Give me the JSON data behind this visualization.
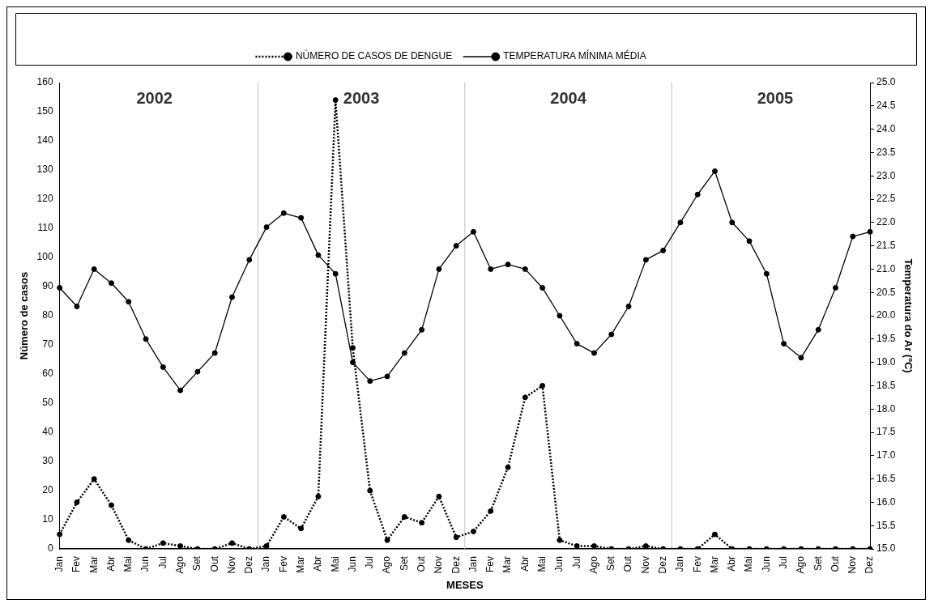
{
  "chart_data": {
    "type": "line",
    "xlabel": "MESES",
    "ylabel": "Número de casos",
    "y2label": "Temperatura do Ar (ºC)",
    "categories": [
      "Jan",
      "Fev",
      "Mar",
      "Abr",
      "Mai",
      "Jun",
      "Jul",
      "Ago",
      "Set",
      "Out",
      "Nov",
      "Dez",
      "Jan",
      "Fev",
      "Mar",
      "Abr",
      "Mai",
      "Jun",
      "Jul",
      "Ago",
      "Set",
      "Out",
      "Nov",
      "Dez",
      "Jan",
      "Fev",
      "Mar",
      "Abr",
      "Mai",
      "Jun",
      "Jul",
      "Ago",
      "Set",
      "Out",
      "Nov",
      "Dez",
      "Jan",
      "Fev",
      "Mar",
      "Abr",
      "Mai",
      "Jun",
      "Jul",
      "Ago",
      "Set",
      "Out",
      "Nov",
      "Dez"
    ],
    "series": [
      {
        "name": "NÚMERO DE CASOS DE DENGUE",
        "color": "#000000",
        "line_style": "dotted",
        "marker": "circle",
        "values": [
          5,
          16,
          24,
          15,
          3,
          0,
          2,
          1,
          0,
          0,
          2,
          0,
          1,
          11,
          7,
          18,
          154,
          69,
          20,
          3,
          11,
          9,
          18,
          4,
          6,
          13,
          28,
          52,
          56,
          3,
          1,
          1,
          0,
          0,
          1,
          0,
          0,
          0,
          5,
          0,
          0,
          0,
          0,
          0,
          0,
          0,
          0,
          0
        ]
      },
      {
        "name": "TEMPERATURA MÍNIMA MÉDIA",
        "color": "#000000",
        "line_style": "solid",
        "marker": "circle",
        "axis": "y2",
        "values": [
          20.6,
          20.2,
          21.0,
          20.7,
          20.3,
          19.5,
          18.9,
          18.4,
          18.8,
          19.2,
          20.4,
          21.2,
          21.9,
          22.2,
          22.1,
          21.3,
          20.9,
          19.0,
          18.6,
          18.7,
          19.2,
          19.7,
          21.0,
          21.5,
          21.8,
          21.0,
          21.1,
          21.0,
          20.6,
          20.0,
          19.4,
          19.2,
          19.6,
          20.2,
          21.2,
          21.4,
          22.0,
          22.6,
          23.1,
          22.0,
          21.6,
          20.9,
          19.4,
          19.1,
          19.7,
          20.6,
          21.7,
          21.8
        ]
      }
    ],
    "ylim": [
      0,
      160
    ],
    "yticks": [
      0,
      10,
      20,
      30,
      40,
      50,
      60,
      70,
      80,
      90,
      100,
      110,
      120,
      130,
      140,
      150,
      160
    ],
    "y2lim": [
      15,
      25
    ],
    "y2ticks": [
      {
        "value": 15,
        "label": "15.0"
      },
      {
        "value": 15.5,
        "label": "15.5"
      },
      {
        "value": 16,
        "label": "16.0"
      },
      {
        "value": 16.5,
        "label": "16.5"
      },
      {
        "value": 17,
        "label": "17.0"
      },
      {
        "value": 17.5,
        "label": "17.5"
      },
      {
        "value": 18,
        "label": "18.0"
      },
      {
        "value": 18.5,
        "label": "18.5"
      },
      {
        "value": 19,
        "label": "19.0"
      },
      {
        "value": 19.5,
        "label": "19.5"
      },
      {
        "value": 20,
        "label": "20.0"
      },
      {
        "value": 20.5,
        "label": "20.5"
      },
      {
        "value": 21,
        "label": "21.0"
      },
      {
        "value": 21.5,
        "label": "21.5"
      },
      {
        "value": 22,
        "label": "22.0"
      },
      {
        "value": 22.5,
        "label": "22.5"
      },
      {
        "value": 23,
        "label": "23.0"
      },
      {
        "value": 23.5,
        "label": "23.5"
      },
      {
        "value": 24,
        "label": "24.0"
      },
      {
        "value": 24.5,
        "label": "24.5"
      },
      {
        "value": 25,
        "label": "25.0"
      }
    ],
    "annotations": [
      "2002",
      "2003",
      "2004",
      "2005"
    ],
    "legend": "top",
    "grid": false
  }
}
